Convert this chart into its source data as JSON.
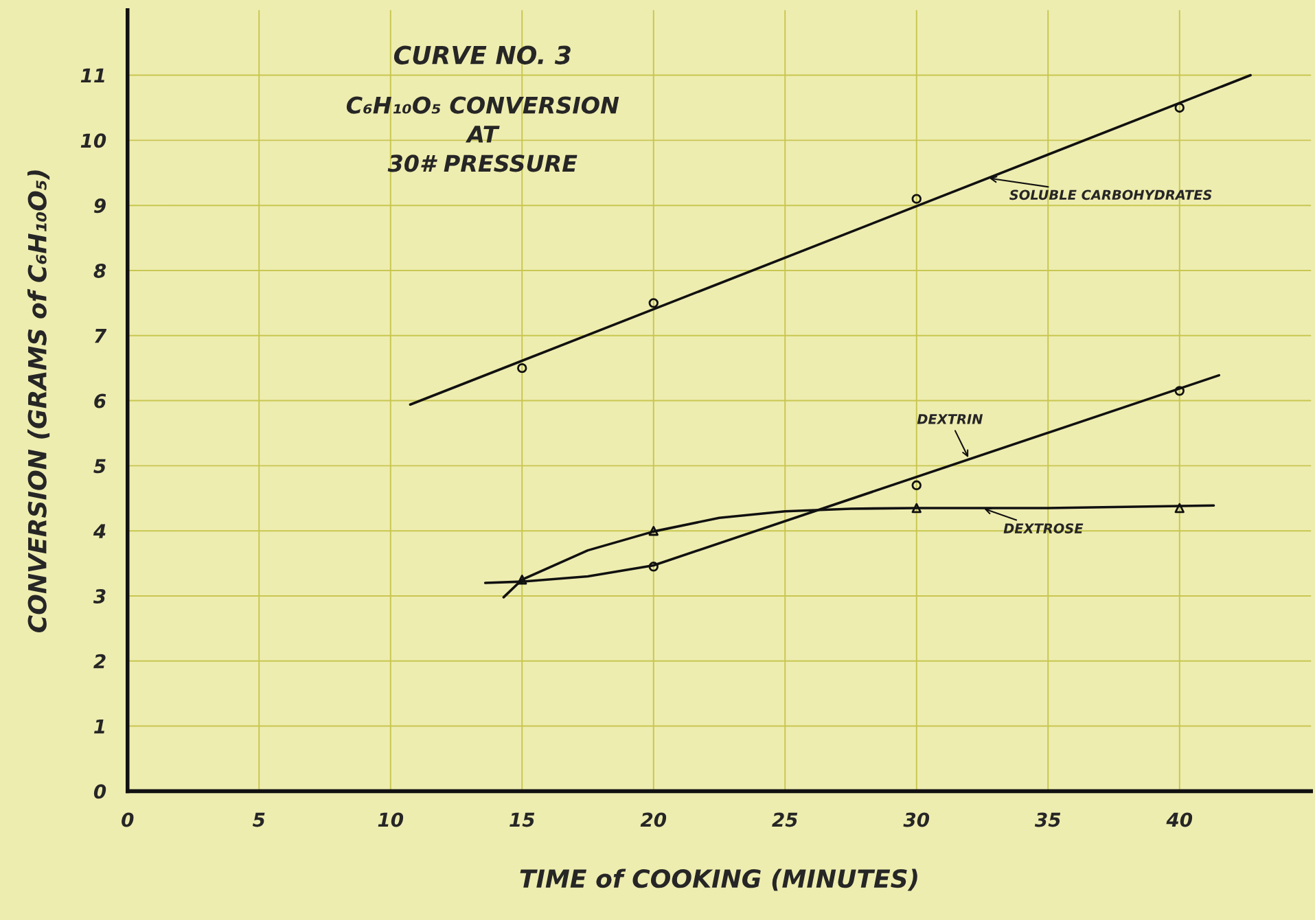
{
  "chart_data": {
    "type": "line",
    "title": "CURVE NO. 3",
    "subtitle": "C₆H₁₀O₅ CONVERSION\nAT\n30# PRESSURE",
    "xlabel": "TIME of COOKING (MINUTES)",
    "ylabel": "CONVERSION (GRAMS of C₆H₁₀O₅)",
    "xlim": [
      0,
      45
    ],
    "ylim": [
      0,
      12
    ],
    "xticks": [
      0,
      5,
      10,
      15,
      20,
      25,
      30,
      35,
      40
    ],
    "yticks": [
      0,
      1,
      2,
      3,
      4,
      5,
      6,
      7,
      8,
      9,
      10,
      11
    ],
    "grid": true,
    "series": [
      {
        "color": "#111111",
        "marker": "none",
        "x": [
          10.75,
          42.7
        ],
        "values": [
          5.94,
          11.0
        ]
      },
      {
        "type": "scatter",
        "color": "#111111",
        "marker": "circle",
        "x": [
          15,
          20,
          30,
          40
        ],
        "values": [
          6.5,
          7.5,
          9.1,
          10.5
        ]
      },
      {
        "color": "#111111",
        "marker": "none",
        "x": [
          13.6,
          15,
          17.5,
          20,
          41.5
        ],
        "values": [
          3.2,
          3.22,
          3.3,
          3.47,
          6.39
        ]
      },
      {
        "type": "scatter",
        "color": "#111111",
        "marker": "circle",
        "x": [
          20,
          30,
          40
        ],
        "values": [
          3.45,
          4.7,
          6.15
        ]
      },
      {
        "color": "#111111",
        "marker": "none",
        "x": [
          14.3,
          15,
          17.5,
          20,
          22.5,
          25,
          27.5,
          30,
          35,
          41.3
        ],
        "values": [
          2.98,
          3.25,
          3.7,
          3.99,
          4.2,
          4.3,
          4.34,
          4.35,
          4.35,
          4.39
        ]
      },
      {
        "type": "scatter",
        "color": "#111111",
        "marker": "triangle",
        "x": [
          15,
          20,
          30,
          40
        ],
        "values": [
          3.25,
          4.0,
          4.35,
          4.35
        ]
      }
    ],
    "annotations": [
      {
        "text": "SOLUBLE CARBOHYDRATES",
        "x": 32.7,
        "y": 9.42
      },
      {
        "text": "DEXTRIN",
        "x": 32,
        "y": 5.1
      },
      {
        "text": "DEXTROSE",
        "x": 32.5,
        "y": 4.35
      }
    ]
  }
}
